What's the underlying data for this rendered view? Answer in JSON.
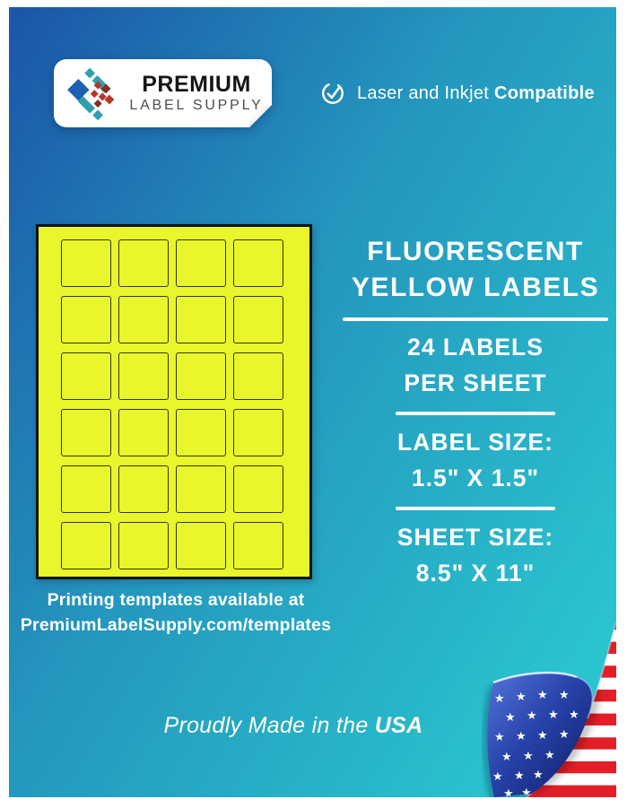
{
  "brand": {
    "line1": "PREMIUM",
    "line2": "LABEL SUPPLY"
  },
  "compatibility_badge": {
    "regular": "Laser and Inkjet",
    "bold": "Compatible"
  },
  "headline": {
    "line1": "FLUORESCENT",
    "line2": "YELLOW LABELS"
  },
  "specs": [
    {
      "line1": "24 LABELS",
      "line2": "PER SHEET"
    },
    {
      "line1": "LABEL SIZE:",
      "line2": "1.5\" X 1.5\""
    },
    {
      "line1": "SHEET SIZE:",
      "line2": "8.5\" X 11\""
    }
  ],
  "sheet": {
    "labels_per_sheet": 24,
    "columns": 4,
    "rows": 6
  },
  "templates_note": {
    "line1": "Printing templates available at",
    "line2": "PremiumLabelSupply.com/templates"
  },
  "footer": {
    "regular": "Proudly Made in the",
    "bold": "USA"
  },
  "colors": {
    "bg-start": "#1b55a8",
    "bg-mid": "#2496bd",
    "bg-end": "#2bcdd2",
    "label-yellow": "#e9f62b",
    "stripe-red": "#e31e26",
    "fold-blue-light": "#5474d8",
    "fold-blue-mid": "#2743ab",
    "fold-blue-dark": "#0e1a5e",
    "logo-blue": "#1d5fb2",
    "logo-teal": "#2f9fae",
    "logo-red": "#b5372b",
    "logo-darkred": "#8a2a20"
  }
}
